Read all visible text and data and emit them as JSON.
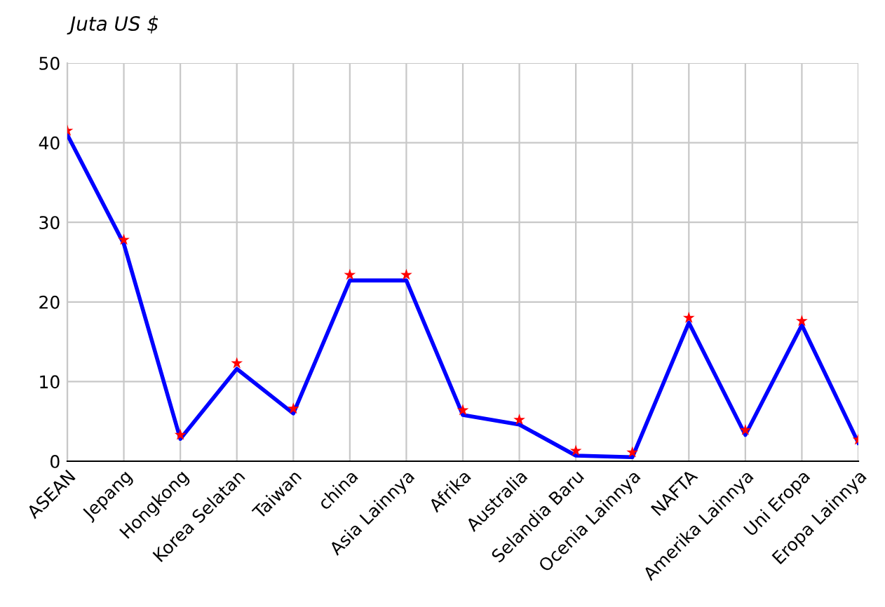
{
  "chart_data": {
    "type": "line",
    "ylabel": "Juta US $",
    "categories": [
      "ASEAN",
      "Jepang",
      "Hongkong",
      "Korea Selatan",
      "Taiwan",
      "china",
      "Asia Lainnya",
      "Afrika",
      "Australia",
      "Selandia Baru",
      "Ocenia Lainnya",
      "NAFTA",
      "Amerika Lainnya",
      "Uni Eropa",
      "Eropa Lainnya"
    ],
    "series": [
      {
        "color": "#0000ff",
        "marker": "none",
        "values": [
          41,
          27.3,
          2.8,
          11.6,
          6.0,
          22.7,
          22.7,
          5.8,
          4.6,
          0.7,
          0.5,
          17.4,
          3.3,
          17.1,
          2.3
        ]
      },
      {
        "type": "scatter",
        "color": "#ff0000",
        "marker": "star",
        "values": [
          41.5,
          27.8,
          3.3,
          12.3,
          6.6,
          23.4,
          23.4,
          6.4,
          5.2,
          1.3,
          1.1,
          18.0,
          3.9,
          17.6,
          2.7
        ]
      }
    ],
    "ylim": [
      0,
      50
    ],
    "yticks": [
      0,
      10,
      20,
      30,
      40,
      50
    ],
    "grid": true
  }
}
